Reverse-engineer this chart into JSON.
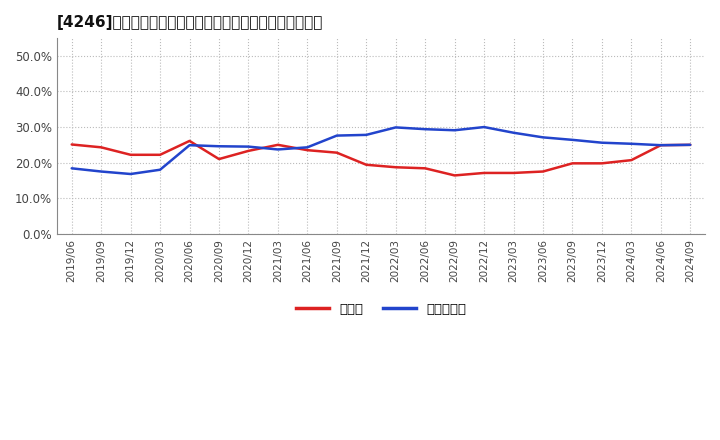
{
  "title": "[4246]　現領金、有利子負債の総資産に対する比率の推移",
  "x_labels": [
    "2019/06",
    "2019/09",
    "2019/12",
    "2020/03",
    "2020/06",
    "2020/09",
    "2020/12",
    "2021/03",
    "2021/06",
    "2021/09",
    "2021/12",
    "2022/03",
    "2022/06",
    "2022/09",
    "2022/12",
    "2023/03",
    "2023/06",
    "2023/09",
    "2023/12",
    "2024/03",
    "2024/06",
    "2024/09"
  ],
  "genkin": [
    0.251,
    0.243,
    0.222,
    0.222,
    0.261,
    0.21,
    0.233,
    0.25,
    0.235,
    0.228,
    0.194,
    0.187,
    0.184,
    0.164,
    0.171,
    0.171,
    0.175,
    0.198,
    0.198,
    0.207,
    0.249,
    0.25
  ],
  "yurishi": [
    0.184,
    0.175,
    0.168,
    0.18,
    0.249,
    0.246,
    0.245,
    0.237,
    0.243,
    0.276,
    0.278,
    0.299,
    0.294,
    0.291,
    0.3,
    0.284,
    0.271,
    0.264,
    0.256,
    0.253,
    0.249,
    0.25
  ],
  "genkin_color": "#dd2222",
  "yurishi_color": "#2244cc",
  "bg_color": "#ffffff",
  "plot_bg_color": "#ffffff",
  "grid_color": "#bbbbbb",
  "legend_genkin": "現領金",
  "legend_yurishi": "有利子負債",
  "ylim": [
    0.0,
    0.55
  ],
  "yticks": [
    0.0,
    0.1,
    0.2,
    0.3,
    0.4,
    0.5
  ]
}
